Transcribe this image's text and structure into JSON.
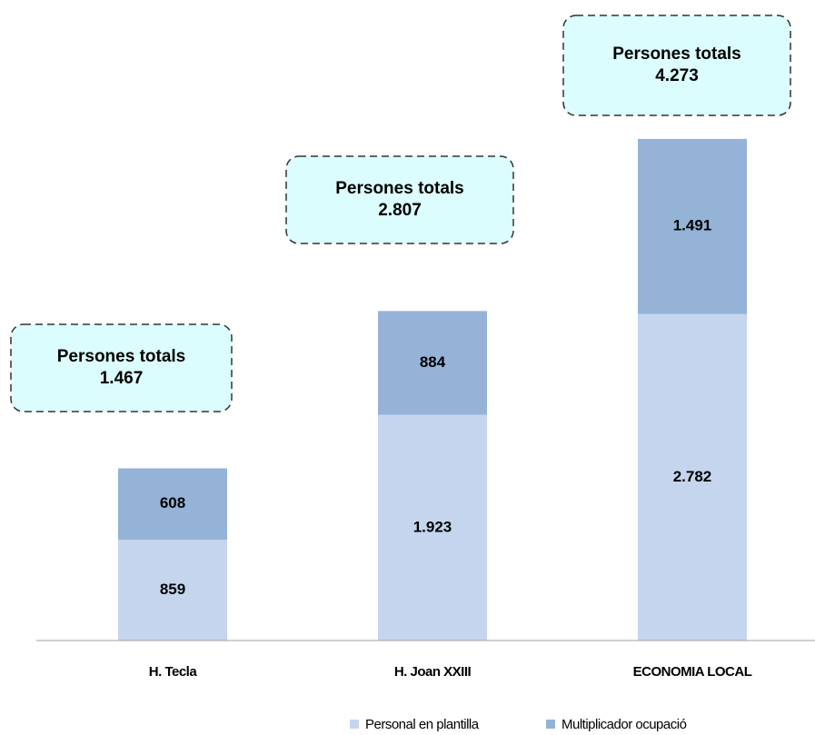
{
  "chart_data": {
    "type": "stacked_bar",
    "categories": [
      "H. Tecla",
      "H. Joan XXIII",
      "ECONOMIA LOCAL"
    ],
    "series": [
      {
        "name": "Personal en plantilla",
        "color": "#c6d5ee",
        "values": [
          859,
          1923,
          2782
        ],
        "value_labels": [
          "859",
          "1.923",
          "2.782"
        ]
      },
      {
        "name": "Multiplicador ocupació",
        "color": "#95b3d7",
        "values": [
          608,
          884,
          1491
        ],
        "value_labels": [
          "608",
          "884",
          "1.491"
        ]
      }
    ],
    "annotations": [
      {
        "text": "Persones totals",
        "value": 1467,
        "label": "1.467"
      },
      {
        "text": "Persones totals",
        "value": 2807,
        "label": "2.807"
      },
      {
        "text": "Persones totals",
        "value": 4273,
        "label": "4.273"
      }
    ],
    "ylim": [
      0,
      5000
    ],
    "legend": "bottom"
  }
}
